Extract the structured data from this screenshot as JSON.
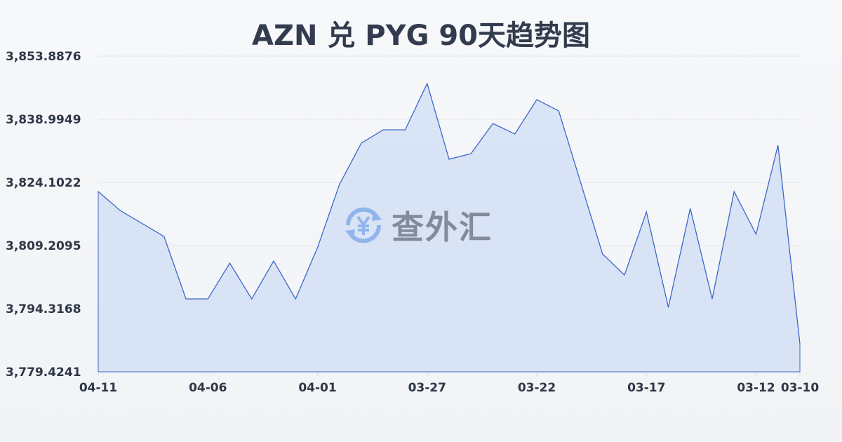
{
  "chart_data": {
    "type": "area",
    "title": "AZN 兑 PYG 90天趋势图",
    "xlabel": "",
    "ylabel": "",
    "x_ticks": [
      "04-11",
      "04-06",
      "04-01",
      "03-27",
      "03-22",
      "03-17",
      "03-12",
      "03-10"
    ],
    "y_ticks": [
      "3,853.8876",
      "3,838.9949",
      "3,824.1022",
      "3,809.2095",
      "3,794.3168",
      "3,779.4241"
    ],
    "ylim": [
      3779.4241,
      3853.8876
    ],
    "grid": true,
    "colors": {
      "line": "#3a66c8",
      "fill": "#d6e1f5"
    },
    "points": [
      {
        "date": "04-11",
        "value": 3821.95
      },
      {
        "date": "04-10",
        "value": 3817.48
      },
      {
        "date": "04-08",
        "value": 3811.36
      },
      {
        "date": "04-07",
        "value": 3796.63
      },
      {
        "date": "04-06",
        "value": 3796.63
      },
      {
        "date": "04-05",
        "value": 3805.07
      },
      {
        "date": "04-04",
        "value": 3796.63
      },
      {
        "date": "04-03",
        "value": 3805.57
      },
      {
        "date": "04-02",
        "value": 3796.63
      },
      {
        "date": "04-01",
        "value": 3808.71
      },
      {
        "date": "03-31",
        "value": 3823.61
      },
      {
        "date": "03-30",
        "value": 3833.37
      },
      {
        "date": "03-29",
        "value": 3836.51
      },
      {
        "date": "03-28",
        "value": 3836.51
      },
      {
        "date": "03-27",
        "value": 3847.43
      },
      {
        "date": "03-26",
        "value": 3829.56
      },
      {
        "date": "03-25",
        "value": 3830.89
      },
      {
        "date": "03-24",
        "value": 3838.0
      },
      {
        "date": "03-23",
        "value": 3835.52
      },
      {
        "date": "03-22",
        "value": 3843.63
      },
      {
        "date": "03-21",
        "value": 3840.98
      },
      {
        "date": "03-20",
        "value": 3824.1
      },
      {
        "date": "03-19",
        "value": 3807.22
      },
      {
        "date": "03-18",
        "value": 3802.26
      },
      {
        "date": "03-17",
        "value": 3817.15
      },
      {
        "date": "03-16",
        "value": 3794.65
      },
      {
        "date": "03-15",
        "value": 3817.98
      },
      {
        "date": "03-14",
        "value": 3796.63
      },
      {
        "date": "03-13",
        "value": 3821.95
      },
      {
        "date": "03-12",
        "value": 3811.86
      },
      {
        "date": "03-11",
        "value": 3832.87
      },
      {
        "date": "03-10",
        "value": 3786.04
      }
    ]
  },
  "watermark": {
    "text": "查外汇",
    "icon": "yen-exchange-icon"
  }
}
